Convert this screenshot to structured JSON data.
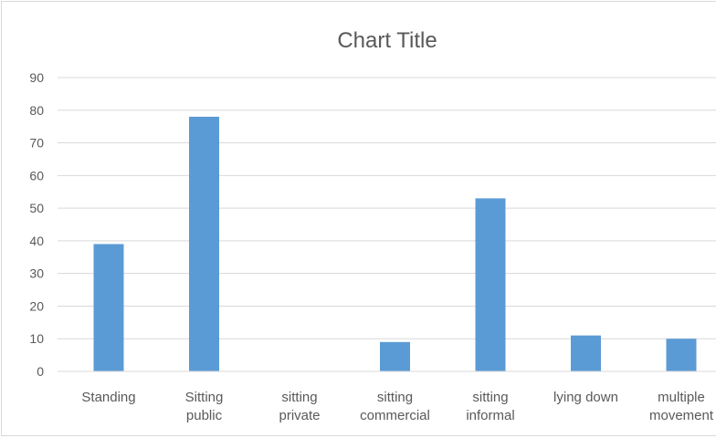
{
  "chart_data": {
    "type": "bar",
    "title": "Chart Title",
    "categories": [
      [
        "Standing"
      ],
      [
        "Sitting",
        "public"
      ],
      [
        "sitting",
        "private"
      ],
      [
        "sitting",
        "commercial"
      ],
      [
        "sitting",
        "informal"
      ],
      [
        "lying down"
      ],
      [
        "multiple",
        "movement"
      ]
    ],
    "values": [
      39,
      78,
      0,
      9,
      53,
      11,
      10
    ],
    "yticks": [
      "0",
      "10",
      "20",
      "30",
      "40",
      "50",
      "60",
      "70",
      "80",
      "90"
    ],
    "ylim": [
      0,
      90
    ],
    "grid": true,
    "legend": "none",
    "colors": {
      "bar": "#5b9bd5"
    }
  }
}
